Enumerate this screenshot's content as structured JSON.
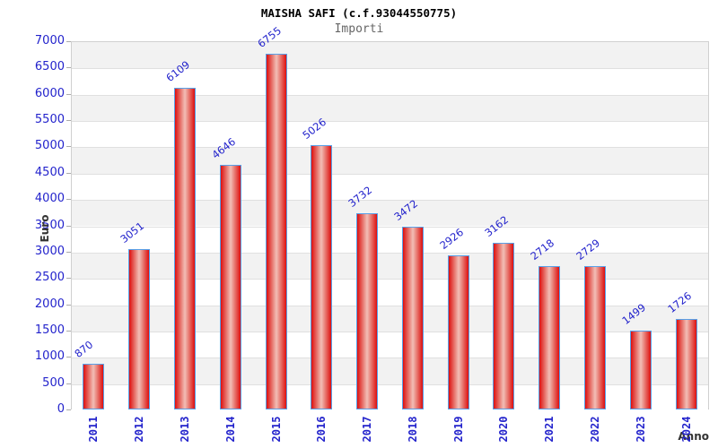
{
  "chart_data": {
    "type": "bar",
    "title": "MAISHA SAFI (c.f.93044550775)",
    "subtitle": "Importi",
    "xlabel": "Anno",
    "ylabel": "Euro",
    "categories": [
      "2011",
      "2012",
      "2013",
      "2014",
      "2015",
      "2016",
      "2017",
      "2018",
      "2019",
      "2020",
      "2021",
      "2022",
      "2023",
      "2024"
    ],
    "values": [
      870,
      3051,
      6109,
      4646,
      6755,
      5026,
      3732,
      3472,
      2926,
      3162,
      2718,
      2729,
      1499,
      1726
    ],
    "ylim": [
      0,
      7000
    ],
    "ytick_step": 500,
    "grid": true,
    "legend_position": "none",
    "banding": "alternating gray/white horizontal bands, gray band at top (6500-7000)"
  },
  "colors": {
    "title": "#000000",
    "subtitle": "#666666",
    "tick_label": "#2323cc",
    "value_label": "#2323cc",
    "axis_title": "#333333",
    "band_gray": "#f2f2f2",
    "band_white": "#ffffff",
    "grid_line": "#e0e0e0",
    "plot_border": "#d0d0d0",
    "axis_line": "#c0c0c0",
    "tick_mark": "#aaaaaa",
    "bar_border": "#58a0e8",
    "bar_fill_edge": "#dd0f0f",
    "bar_fill_mid": "#e87a72",
    "bar_fill_center": "#f2beb6"
  }
}
